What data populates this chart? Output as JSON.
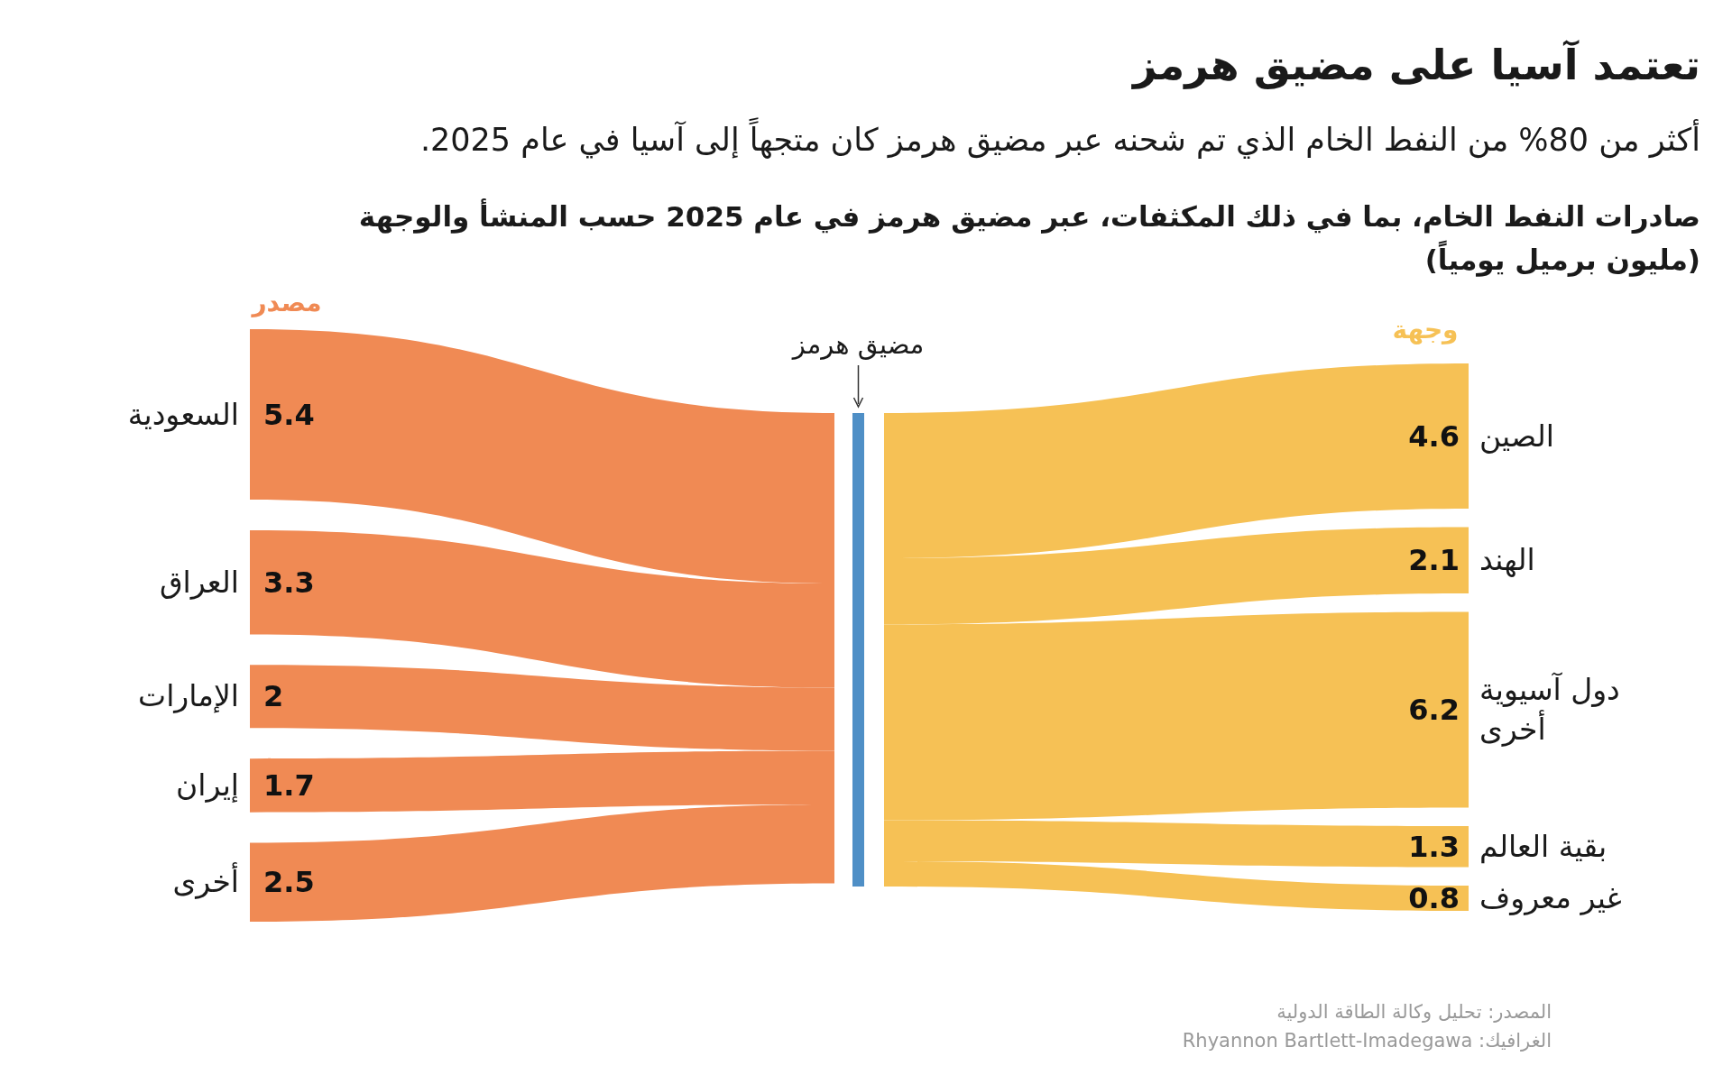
{
  "chart_data": {
    "type": "other",
    "title": "تعتمد آسيا على مضيق هرمز",
    "subtitle": "أكثر من 80% من النفط الخام الذي تم شحنه عبر مضيق هرمز كان متجهاً إلى آسيا في عام 2025.",
    "categories": [
      "السعودية",
      "العراق",
      "الإمارات",
      "إيران",
      "أخرى",
      "الصين",
      "الهند",
      "دول آسيوية أخرى",
      "بقية العالم",
      "غير معروف"
    ],
    "values": [
      5.4,
      3.3,
      2,
      1.7,
      2.5,
      4.6,
      2.1,
      6.2,
      1.3,
      0.8
    ],
    "colors": [
      "#f08a54",
      "#f08a54",
      "#f08a54",
      "#f08a54",
      "#f08a54",
      "#f6c155",
      "#f6c155",
      "#f6c155",
      "#f6c155",
      "#f6c155"
    ],
    "data_labels": true,
    "annotations": [
      "صادرات النفط الخام، بما في ذلك المكثفات، عبر مضيق هرمز في عام 2025 حسب المنشأ والوجهة",
      "(مليون برميل يومياً)",
      "مضيق هرمز",
      "المصدر: تحليل وكالة الطاقة الدولية",
      "الغرافيك: Rhyannon Bartlett-Imadegawa",
      "مصدر",
      "وجهة"
    ]
  }
}
